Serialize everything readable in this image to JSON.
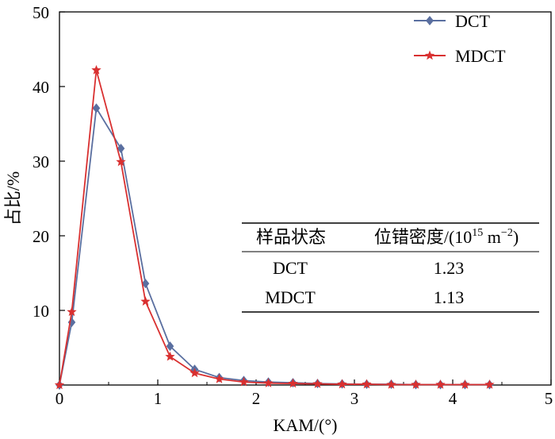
{
  "chart_data": {
    "type": "line",
    "xlabel": "KAM/(°)",
    "ylabel": "占比/%",
    "xlim": [
      0,
      5
    ],
    "ylim": [
      0,
      50
    ],
    "x_ticks": [
      "0",
      "1",
      "2",
      "3",
      "4",
      "5"
    ],
    "y_ticks": [
      "10",
      "20",
      "30",
      "40",
      "50"
    ],
    "x": [
      0,
      0.125,
      0.375,
      0.625,
      0.875,
      1.125,
      1.375,
      1.625,
      1.875,
      2.125,
      2.375,
      2.625,
      2.875,
      3.125,
      3.375,
      3.625,
      3.875,
      4.125,
      4.375
    ],
    "series": [
      {
        "name": "DCT",
        "color": "#5a6fa0",
        "marker": "diamond",
        "values": [
          0,
          8.4,
          37.1,
          31.7,
          13.6,
          5.2,
          2.1,
          1.0,
          0.6,
          0.4,
          0.3,
          0.2,
          0.15,
          0.1,
          0.1,
          0.05,
          0.05,
          0.05,
          0.05
        ]
      },
      {
        "name": "MDCT",
        "color": "#d93030",
        "marker": "star",
        "values": [
          0,
          9.8,
          42.2,
          29.9,
          11.2,
          3.8,
          1.6,
          0.8,
          0.4,
          0.25,
          0.2,
          0.15,
          0.1,
          0.1,
          0.05,
          0.05,
          0.05,
          0.05,
          0.05
        ]
      }
    ],
    "legend": {
      "position": "top-right",
      "entries": [
        "DCT",
        "MDCT"
      ]
    },
    "inset_table": {
      "headers": [
        "样品状态",
        "位错密度/(10",
        "15",
        " m",
        "−2",
        ")"
      ],
      "rows": [
        [
          "DCT",
          "1.23"
        ],
        [
          "MDCT",
          "1.13"
        ]
      ]
    }
  }
}
